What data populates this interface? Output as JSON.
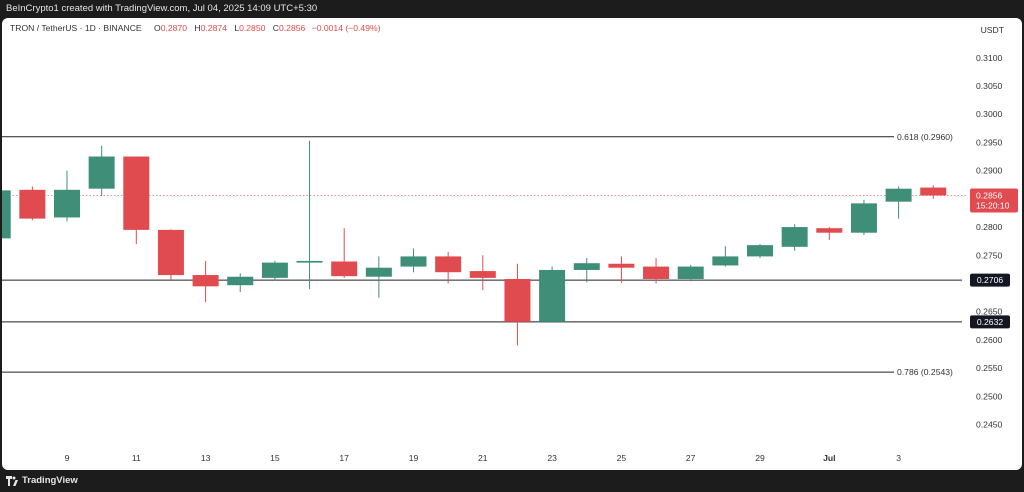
{
  "header": {
    "credit": "BeInCrypto1 created with TradingView.com, Jul 04, 2025 14:09 UTC+5:30"
  },
  "legend": {
    "symbol": "TRON / TetherUS · 1D · BINANCE",
    "open_label": "O",
    "open": "0.2870",
    "high_label": "H",
    "high": "0.2874",
    "low_label": "L",
    "low": "0.2850",
    "close_label": "C",
    "close": "0.2856",
    "change": "−0.0014 (−0.49%)"
  },
  "currency": "USDT",
  "footer": {
    "brand": "TradingView"
  },
  "colors": {
    "up": "#3f8f78",
    "down": "#e04b4f",
    "grid_line": "#222222",
    "price_line": "#e04b4f",
    "dark_label": "#131722"
  },
  "chart_data": {
    "type": "candlestick",
    "ylim": [
      0.2405,
      0.3135
    ],
    "y_ticks": [
      "0.3100",
      "0.3050",
      "0.3000",
      "0.2950",
      "0.2900",
      "0.2800",
      "0.2750",
      "0.2650",
      "0.2600",
      "0.2550",
      "0.2500",
      "0.2450"
    ],
    "x_ticks": [
      {
        "label": "9",
        "day": 9
      },
      {
        "label": "11",
        "day": 11
      },
      {
        "label": "13",
        "day": 13
      },
      {
        "label": "15",
        "day": 15
      },
      {
        "label": "17",
        "day": 17
      },
      {
        "label": "19",
        "day": 19
      },
      {
        "label": "21",
        "day": 21
      },
      {
        "label": "23",
        "day": 23
      },
      {
        "label": "25",
        "day": 25
      },
      {
        "label": "27",
        "day": 27
      },
      {
        "label": "29",
        "day": 29
      },
      {
        "label": "Jul",
        "day": 31,
        "bold": true
      },
      {
        "label": "3",
        "day": 33
      }
    ],
    "candles": [
      {
        "day": 7,
        "o": 0.278,
        "h": 0.287,
        "l": 0.2775,
        "c": 0.2865
      },
      {
        "day": 8,
        "o": 0.2866,
        "h": 0.2872,
        "l": 0.2812,
        "c": 0.2815
      },
      {
        "day": 9,
        "o": 0.2817,
        "h": 0.29,
        "l": 0.281,
        "c": 0.2866
      },
      {
        "day": 10,
        "o": 0.2868,
        "h": 0.2944,
        "l": 0.2855,
        "c": 0.2925
      },
      {
        "day": 11,
        "o": 0.2925,
        "h": 0.2925,
        "l": 0.277,
        "c": 0.2795
      },
      {
        "day": 12,
        "o": 0.2795,
        "h": 0.2796,
        "l": 0.2706,
        "c": 0.2715
      },
      {
        "day": 13,
        "o": 0.2715,
        "h": 0.274,
        "l": 0.2667,
        "c": 0.2695
      },
      {
        "day": 14,
        "o": 0.2697,
        "h": 0.2718,
        "l": 0.2685,
        "c": 0.2712
      },
      {
        "day": 15,
        "o": 0.271,
        "h": 0.274,
        "l": 0.2705,
        "c": 0.2737
      },
      {
        "day": 16,
        "o": 0.2737,
        "h": 0.2953,
        "l": 0.269,
        "c": 0.274
      },
      {
        "day": 17,
        "o": 0.2739,
        "h": 0.2798,
        "l": 0.271,
        "c": 0.2713
      },
      {
        "day": 18,
        "o": 0.2712,
        "h": 0.2748,
        "l": 0.2675,
        "c": 0.2728
      },
      {
        "day": 19,
        "o": 0.273,
        "h": 0.2762,
        "l": 0.272,
        "c": 0.2748
      },
      {
        "day": 20,
        "o": 0.2748,
        "h": 0.2756,
        "l": 0.27,
        "c": 0.272
      },
      {
        "day": 21,
        "o": 0.2722,
        "h": 0.275,
        "l": 0.2688,
        "c": 0.271
      },
      {
        "day": 22,
        "o": 0.2708,
        "h": 0.2735,
        "l": 0.259,
        "c": 0.2632
      },
      {
        "day": 23,
        "o": 0.2632,
        "h": 0.273,
        "l": 0.2632,
        "c": 0.2724
      },
      {
        "day": 24,
        "o": 0.2724,
        "h": 0.2745,
        "l": 0.2702,
        "c": 0.2736
      },
      {
        "day": 25,
        "o": 0.2735,
        "h": 0.2748,
        "l": 0.2701,
        "c": 0.2728
      },
      {
        "day": 26,
        "o": 0.273,
        "h": 0.2745,
        "l": 0.27,
        "c": 0.2708
      },
      {
        "day": 27,
        "o": 0.2708,
        "h": 0.2733,
        "l": 0.2704,
        "c": 0.273
      },
      {
        "day": 28,
        "o": 0.2732,
        "h": 0.2766,
        "l": 0.273,
        "c": 0.2748
      },
      {
        "day": 29,
        "o": 0.2748,
        "h": 0.277,
        "l": 0.2745,
        "c": 0.2768
      },
      {
        "day": 30,
        "o": 0.2765,
        "h": 0.2805,
        "l": 0.2758,
        "c": 0.28
      },
      {
        "day": 31,
        "o": 0.2798,
        "h": 0.28,
        "l": 0.2777,
        "c": 0.279
      },
      {
        "day": 32,
        "o": 0.279,
        "h": 0.2848,
        "l": 0.2786,
        "c": 0.2842
      },
      {
        "day": 33,
        "o": 0.2845,
        "h": 0.2872,
        "l": 0.2815,
        "c": 0.2868
      },
      {
        "day": 34,
        "o": 0.287,
        "h": 0.2874,
        "l": 0.285,
        "c": 0.2856
      }
    ],
    "levels": [
      {
        "price": 0.296,
        "label": "0.618 (0.2960)",
        "style": "fib"
      },
      {
        "price": 0.2706,
        "label": "0.2706",
        "style": "support"
      },
      {
        "price": 0.2632,
        "label": "0.2632",
        "style": "support"
      },
      {
        "price": 0.2543,
        "label": "0.786 (0.2543)",
        "style": "fib"
      }
    ],
    "current_price": {
      "price": 0.2856,
      "label": "0.2856",
      "countdown": "15:20:10"
    }
  }
}
